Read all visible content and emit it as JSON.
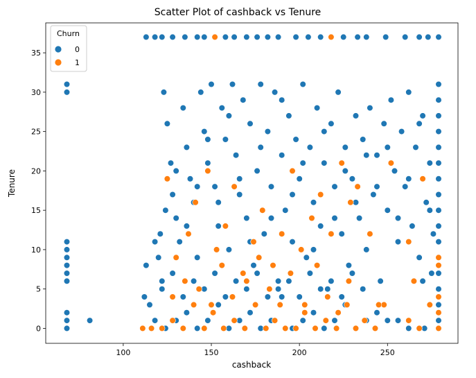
{
  "chart_data": {
    "type": "scatter",
    "title": "Scatter Plot of cashback vs Tenure",
    "xlabel": "cashback",
    "ylabel": "Tenure",
    "xlim": [
      56,
      290
    ],
    "ylim": [
      -1.9,
      38.8
    ],
    "xticks": [
      100,
      150,
      200,
      250
    ],
    "yticks": [
      0,
      5,
      10,
      15,
      20,
      25,
      30,
      35
    ],
    "grid": false,
    "legend": {
      "title": "Churn",
      "placement": "top-left"
    },
    "colors": {
      "0": "#1f77b4",
      "1": "#ff7f0e"
    },
    "series": [
      {
        "name": "0",
        "points": [
          [
            68,
            0
          ],
          [
            68,
            1
          ],
          [
            68,
            2
          ],
          [
            68,
            6
          ],
          [
            68,
            7
          ],
          [
            68,
            8
          ],
          [
            68,
            9
          ],
          [
            68,
            10
          ],
          [
            68,
            11
          ],
          [
            68,
            30
          ],
          [
            68,
            31
          ],
          [
            81,
            1
          ],
          [
            113,
            37
          ],
          [
            118,
            37
          ],
          [
            122,
            37
          ],
          [
            128,
            37
          ],
          [
            135,
            37
          ],
          [
            142,
            37
          ],
          [
            146,
            37
          ],
          [
            158,
            37
          ],
          [
            163,
            37
          ],
          [
            170,
            37
          ],
          [
            176,
            37
          ],
          [
            182,
            37
          ],
          [
            188,
            37
          ],
          [
            198,
            37
          ],
          [
            205,
            37
          ],
          [
            212,
            37
          ],
          [
            225,
            37
          ],
          [
            233,
            37
          ],
          [
            238,
            37
          ],
          [
            249,
            37
          ],
          [
            260,
            37
          ],
          [
            268,
            37
          ],
          [
            273,
            37
          ],
          [
            279,
            37
          ],
          [
            113,
            8
          ],
          [
            112,
            4
          ],
          [
            115,
            3
          ],
          [
            118,
            11
          ],
          [
            120,
            9
          ],
          [
            121,
            12
          ],
          [
            122,
            6
          ],
          [
            123,
            30
          ],
          [
            125,
            26
          ],
          [
            127,
            21
          ],
          [
            128,
            17
          ],
          [
            130,
            14
          ],
          [
            132,
            11
          ],
          [
            134,
            28
          ],
          [
            136,
            23
          ],
          [
            138,
            19
          ],
          [
            140,
            16
          ],
          [
            142,
            9
          ],
          [
            144,
            30
          ],
          [
            146,
            25
          ],
          [
            148,
            21
          ],
          [
            150,
            31
          ],
          [
            152,
            18
          ],
          [
            154,
            13
          ],
          [
            156,
            28
          ],
          [
            158,
            24
          ],
          [
            160,
            10
          ],
          [
            162,
            31
          ],
          [
            164,
            22
          ],
          [
            166,
            17
          ],
          [
            168,
            29
          ],
          [
            170,
            14
          ],
          [
            172,
            26
          ],
          [
            174,
            8
          ],
          [
            176,
            20
          ],
          [
            178,
            31
          ],
          [
            180,
            12
          ],
          [
            182,
            25
          ],
          [
            184,
            18
          ],
          [
            186,
            30
          ],
          [
            188,
            6
          ],
          [
            190,
            22
          ],
          [
            192,
            15
          ],
          [
            194,
            27
          ],
          [
            196,
            11
          ],
          [
            198,
            24
          ],
          [
            200,
            19
          ],
          [
            202,
            31
          ],
          [
            204,
            9
          ],
          [
            206,
            23
          ],
          [
            208,
            16
          ],
          [
            210,
            28
          ],
          [
            212,
            13
          ],
          [
            214,
            21
          ],
          [
            216,
            5
          ],
          [
            218,
            26
          ],
          [
            220,
            18
          ],
          [
            222,
            30
          ],
          [
            224,
            12
          ],
          [
            226,
            23
          ],
          [
            228,
            8
          ],
          [
            230,
            19
          ],
          [
            232,
            27
          ],
          [
            234,
            14
          ],
          [
            236,
            24
          ],
          [
            238,
            10
          ],
          [
            240,
            28
          ],
          [
            242,
            17
          ],
          [
            244,
            22
          ],
          [
            246,
            6
          ],
          [
            248,
            26
          ],
          [
            250,
            15
          ],
          [
            252,
            29
          ],
          [
            254,
            20
          ],
          [
            256,
            11
          ],
          [
            258,
            25
          ],
          [
            260,
            18
          ],
          [
            262,
            30
          ],
          [
            264,
            13
          ],
          [
            266,
            23
          ],
          [
            268,
            9
          ],
          [
            270,
            27
          ],
          [
            272,
            16
          ],
          [
            274,
            21
          ],
          [
            276,
            12
          ],
          [
            279,
            0
          ],
          [
            279,
            1
          ],
          [
            279,
            3
          ],
          [
            279,
            5
          ],
          [
            279,
            7
          ],
          [
            279,
            9
          ],
          [
            279,
            11
          ],
          [
            279,
            13
          ],
          [
            279,
            15
          ],
          [
            279,
            17
          ],
          [
            279,
            19
          ],
          [
            279,
            21
          ],
          [
            279,
            23
          ],
          [
            279,
            25
          ],
          [
            279,
            27
          ],
          [
            279,
            29
          ],
          [
            279,
            31
          ],
          [
            118,
            1
          ],
          [
            124,
            0
          ],
          [
            130,
            1
          ],
          [
            136,
            2
          ],
          [
            142,
            0
          ],
          [
            148,
            1
          ],
          [
            154,
            3
          ],
          [
            160,
            0
          ],
          [
            166,
            1
          ],
          [
            172,
            2
          ],
          [
            178,
            0
          ],
          [
            184,
            1
          ],
          [
            190,
            4
          ],
          [
            196,
            0
          ],
          [
            202,
            1
          ],
          [
            208,
            2
          ],
          [
            214,
            0
          ],
          [
            220,
            1
          ],
          [
            226,
            3
          ],
          [
            232,
            0
          ],
          [
            238,
            1
          ],
          [
            244,
            2
          ],
          [
            250,
            1
          ],
          [
            256,
            1
          ],
          [
            262,
            0
          ],
          [
            271,
            0
          ],
          [
            122,
            5
          ],
          [
            128,
            7
          ],
          [
            134,
            4
          ],
          [
            140,
            6
          ],
          [
            146,
            5
          ],
          [
            152,
            7
          ],
          [
            158,
            4
          ],
          [
            164,
            6
          ],
          [
            170,
            5
          ],
          [
            176,
            7
          ],
          [
            182,
            4
          ],
          [
            188,
            5
          ],
          [
            194,
            6
          ],
          [
            200,
            4
          ],
          [
            206,
            7
          ],
          [
            212,
            5
          ],
          [
            218,
            6
          ],
          [
            224,
            4
          ],
          [
            230,
            7
          ],
          [
            236,
            5
          ],
          [
            270,
            6
          ],
          [
            275,
            7
          ],
          [
            124,
            15
          ],
          [
            130,
            20
          ],
          [
            136,
            13
          ],
          [
            142,
            18
          ],
          [
            148,
            24
          ],
          [
            154,
            16
          ],
          [
            160,
            27
          ],
          [
            166,
            19
          ],
          [
            172,
            11
          ],
          [
            178,
            23
          ],
          [
            184,
            14
          ],
          [
            190,
            29
          ],
          [
            196,
            17
          ],
          [
            202,
            21
          ],
          [
            208,
            10
          ],
          [
            214,
            25
          ],
          [
            220,
            14
          ],
          [
            226,
            20
          ],
          [
            232,
            16
          ],
          [
            238,
            22
          ],
          [
            244,
            18
          ],
          [
            250,
            23
          ],
          [
            256,
            14
          ],
          [
            262,
            19
          ],
          [
            268,
            26
          ],
          [
            274,
            15
          ]
        ]
      },
      {
        "name": "1",
        "points": [
          [
            111,
            0
          ],
          [
            116,
            0
          ],
          [
            122,
            0
          ],
          [
            128,
            1
          ],
          [
            134,
            0
          ],
          [
            140,
            3
          ],
          [
            146,
            0
          ],
          [
            151,
            2
          ],
          [
            157,
            0
          ],
          [
            163,
            1
          ],
          [
            169,
            0
          ],
          [
            175,
            3
          ],
          [
            181,
            0
          ],
          [
            186,
            1
          ],
          [
            192,
            0
          ],
          [
            198,
            0
          ],
          [
            203,
            2
          ],
          [
            209,
            0
          ],
          [
            215,
            1
          ],
          [
            221,
            0
          ],
          [
            227,
            3
          ],
          [
            232,
            0
          ],
          [
            237,
            1
          ],
          [
            243,
            0
          ],
          [
            248,
            3
          ],
          [
            262,
            1
          ],
          [
            268,
            0
          ],
          [
            279,
            0
          ],
          [
            125,
            19
          ],
          [
            130,
            9
          ],
          [
            137,
            12
          ],
          [
            141,
            16
          ],
          [
            148,
            20
          ],
          [
            153,
            10
          ],
          [
            158,
            13
          ],
          [
            163,
            18
          ],
          [
            168,
            7
          ],
          [
            174,
            11
          ],
          [
            179,
            15
          ],
          [
            185,
            8
          ],
          [
            190,
            12
          ],
          [
            196,
            20
          ],
          [
            201,
            10
          ],
          [
            207,
            14
          ],
          [
            212,
            17
          ],
          [
            218,
            12
          ],
          [
            224,
            21
          ],
          [
            229,
            16
          ],
          [
            233,
            18
          ],
          [
            240,
            12
          ],
          [
            252,
            21
          ],
          [
            262,
            11
          ],
          [
            270,
            19
          ],
          [
            274,
            3
          ],
          [
            128,
            4
          ],
          [
            135,
            6
          ],
          [
            143,
            5
          ],
          [
            150,
            3
          ],
          [
            156,
            8
          ],
          [
            162,
            4
          ],
          [
            170,
            6
          ],
          [
            177,
            9
          ],
          [
            183,
            5
          ],
          [
            189,
            3
          ],
          [
            195,
            7
          ],
          [
            203,
            3
          ],
          [
            210,
            8
          ],
          [
            216,
            4
          ],
          [
            222,
            2
          ],
          [
            228,
            6
          ],
          [
            245,
            3
          ],
          [
            265,
            6
          ],
          [
            279,
            8
          ],
          [
            279,
            9
          ],
          [
            279,
            4
          ],
          [
            279,
            2
          ],
          [
            152,
            37
          ],
          [
            218,
            37
          ]
        ]
      }
    ]
  }
}
